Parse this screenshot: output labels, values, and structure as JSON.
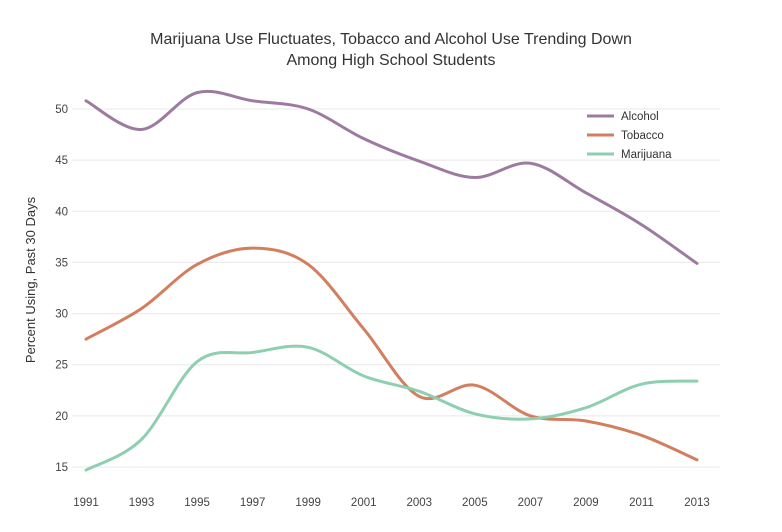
{
  "chart_data": {
    "type": "line",
    "title": [
      "Marijuana Use Fluctuates, Tobacco and Alcohol Use Trending Down",
      "Among High School Students"
    ],
    "xlabel": "",
    "ylabel": "Percent Using, Past 30 Days",
    "x": [
      1991,
      1993,
      1995,
      1997,
      1999,
      2001,
      2003,
      2005,
      2007,
      2009,
      2011,
      2013
    ],
    "x_tick_labels": [
      "1991",
      "1993",
      "1995",
      "1997",
      "1999",
      "2001",
      "2003",
      "2005",
      "2007",
      "2009",
      "2011",
      "2013"
    ],
    "y_ticks": [
      15,
      20,
      25,
      30,
      35,
      40,
      45,
      50
    ],
    "y_tick_labels": [
      "15",
      "20",
      "25",
      "30",
      "35",
      "40",
      "45",
      "50"
    ],
    "xlim": [
      1991,
      2013
    ],
    "ylim": [
      15,
      50
    ],
    "grid": true,
    "legend_position": "top-right",
    "series": [
      {
        "name": "Alcohol",
        "color": "#9d7ba0",
        "values": [
          50.8,
          48.0,
          51.6,
          50.8,
          50.0,
          47.1,
          44.9,
          43.3,
          44.7,
          41.8,
          38.7,
          34.9
        ]
      },
      {
        "name": "Tobacco",
        "color": "#d27f5f",
        "values": [
          27.5,
          30.5,
          34.8,
          36.4,
          34.8,
          28.5,
          21.9,
          23.0,
          20.0,
          19.5,
          18.1,
          15.7
        ]
      },
      {
        "name": "Marijuana",
        "color": "#8ecfb2",
        "values": [
          14.7,
          17.7,
          25.3,
          26.2,
          26.7,
          23.9,
          22.4,
          20.2,
          19.7,
          20.8,
          23.1,
          23.4
        ]
      }
    ]
  }
}
